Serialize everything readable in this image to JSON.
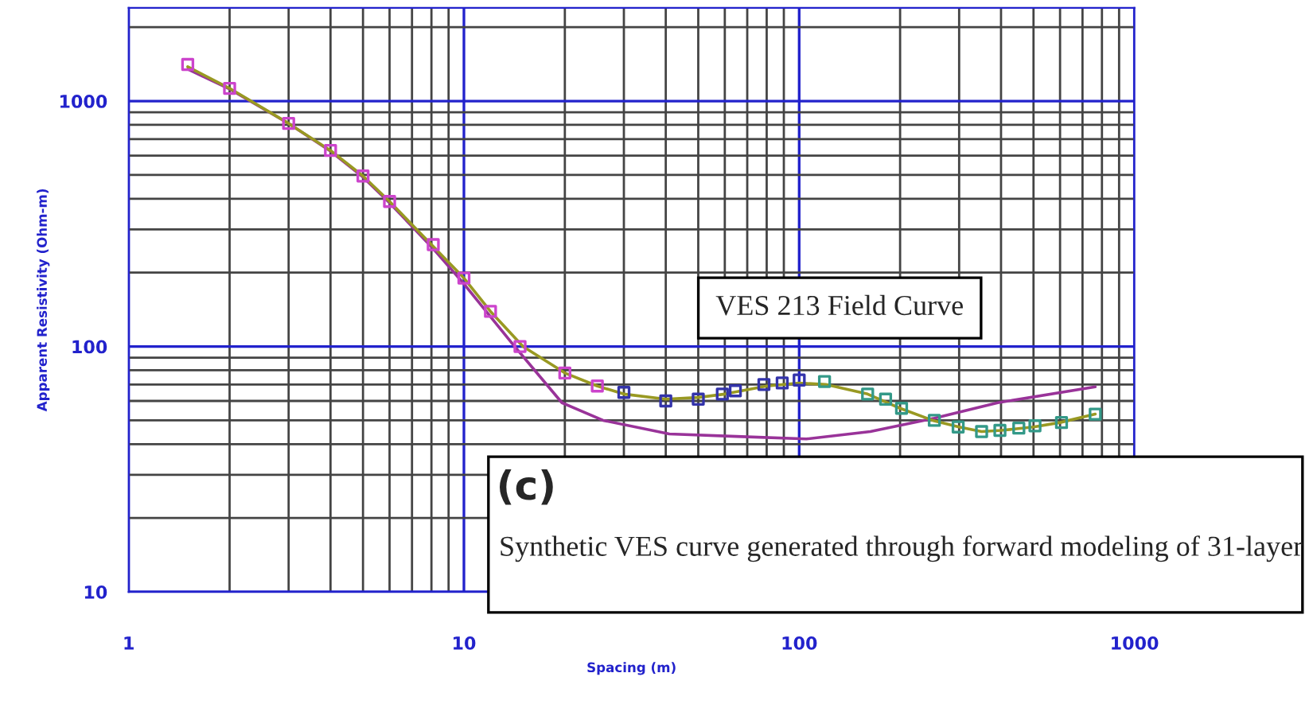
{
  "chart_data": {
    "type": "line",
    "xlabel": "Spacing (m)",
    "ylabel": "Apparent Resistivity (Ohm-m)",
    "log": "xy",
    "xlim": [
      1,
      1000
    ],
    "ylim": [
      10,
      2400
    ],
    "xticks": [
      1,
      10,
      100,
      1000
    ],
    "yticks": [
      10,
      100,
      1000
    ],
    "grid": true,
    "annotations": [
      "VES 213 Field Curve",
      "(c)",
      "Synthetic VES curve generated through forward modeling of 31-layer"
    ],
    "series": [
      {
        "color": "#993399",
        "x": [
          1.5,
          2.0,
          3.0,
          4.0,
          5.0,
          6.0,
          8.0,
          10,
          14,
          19.6,
          26,
          41,
          65,
          105,
          163,
          253,
          391,
          764
        ],
        "values": [
          1350,
          1120,
          810,
          625,
          490,
          385,
          255,
          180,
          102,
          59,
          50,
          44,
          43,
          42,
          45,
          51,
          59,
          68.5
        ]
      },
      {
        "color": "#999922",
        "x": [
          1.5,
          2.0,
          3.0,
          4.0,
          5.0,
          6.0,
          8.0,
          10,
          12,
          15,
          20,
          25,
          30,
          40,
          50,
          60,
          80,
          100,
          120,
          160,
          200,
          250,
          300,
          350,
          400,
          500,
          600,
          764
        ],
        "values": [
          1380,
          1127,
          811,
          629,
          495,
          390,
          260,
          190,
          139,
          100,
          78,
          69,
          64,
          61,
          62,
          64,
          69,
          71,
          70,
          64,
          56,
          50,
          47,
          45,
          45.5,
          47,
          49,
          53
        ]
      },
      {
        "type": "scatter",
        "marker": "square",
        "colors": [
          "#cc44cc",
          "#cc44cc",
          "#cc44cc",
          "#cc44cc",
          "#cc44cc",
          "#cc44cc",
          "#cc44cc",
          "#cc44cc",
          "#cc44cc",
          "#cc44cc",
          "#cc44cc",
          "#cc44cc",
          "#3333aa",
          "#3333aa",
          "#3333aa",
          "#3333aa",
          "#3333aa",
          "#3333aa",
          "#3333aa",
          "#3333aa",
          "#339988",
          "#339988",
          "#339988",
          "#339988",
          "#339988",
          "#339988",
          "#339988",
          "#339988",
          "#339988",
          "#339988",
          "#339988",
          "#339988"
        ],
        "x": [
          1.5,
          2.0,
          3.0,
          4.0,
          5.0,
          6.0,
          8.1,
          10,
          12,
          14.7,
          20,
          25,
          30,
          40,
          50,
          59,
          64.5,
          78.5,
          89,
          100,
          119,
          160,
          181,
          202,
          253,
          298,
          350,
          397,
          452,
          505,
          606,
          764
        ],
        "values": [
          1410,
          1127,
          811,
          629,
          495,
          390,
          260,
          190,
          139,
          100,
          78,
          69,
          65,
          60,
          61,
          64,
          66,
          70,
          71,
          73,
          72,
          64,
          61,
          56,
          50,
          47,
          45,
          45.5,
          46.5,
          47.5,
          49,
          53
        ]
      }
    ]
  }
}
